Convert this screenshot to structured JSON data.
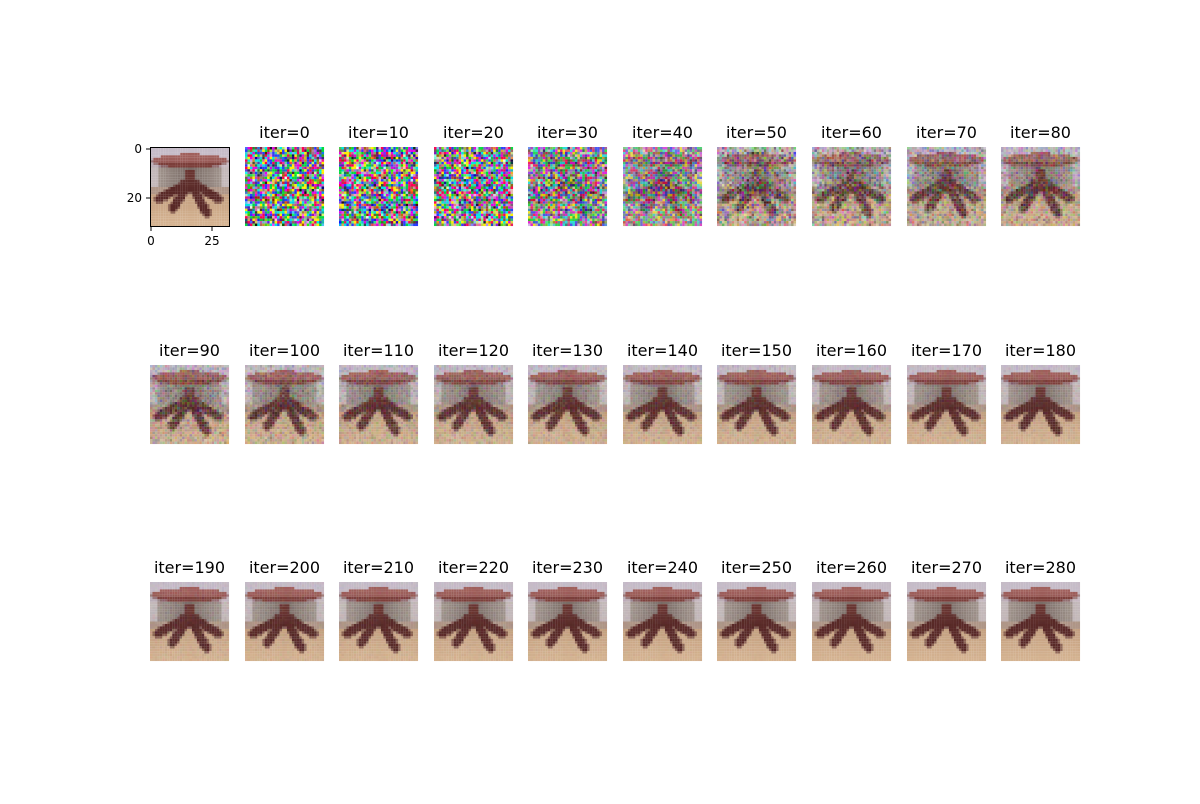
{
  "figure": {
    "original": {
      "y_ticks": [
        "0",
        "20"
      ],
      "x_ticks": [
        "0",
        "25"
      ]
    },
    "panels": [
      {
        "title": "iter=0",
        "noise": 1.0
      },
      {
        "title": "iter=10",
        "noise": 1.0
      },
      {
        "title": "iter=20",
        "noise": 0.97
      },
      {
        "title": "iter=30",
        "noise": 0.78
      },
      {
        "title": "iter=40",
        "noise": 0.58
      },
      {
        "title": "iter=50",
        "noise": 0.42
      },
      {
        "title": "iter=60",
        "noise": 0.34
      },
      {
        "title": "iter=70",
        "noise": 0.28
      },
      {
        "title": "iter=80",
        "noise": 0.24
      },
      {
        "title": "iter=90",
        "noise": 0.2
      },
      {
        "title": "iter=100",
        "noise": 0.17
      },
      {
        "title": "iter=110",
        "noise": 0.14
      },
      {
        "title": "iter=120",
        "noise": 0.12
      },
      {
        "title": "iter=130",
        "noise": 0.1
      },
      {
        "title": "iter=140",
        "noise": 0.09
      },
      {
        "title": "iter=150",
        "noise": 0.08
      },
      {
        "title": "iter=160",
        "noise": 0.07
      },
      {
        "title": "iter=170",
        "noise": 0.06
      },
      {
        "title": "iter=180",
        "noise": 0.05
      },
      {
        "title": "iter=190",
        "noise": 0.04
      },
      {
        "title": "iter=200",
        "noise": 0.035
      },
      {
        "title": "iter=210",
        "noise": 0.03
      },
      {
        "title": "iter=220",
        "noise": 0.025
      },
      {
        "title": "iter=230",
        "noise": 0.02
      },
      {
        "title": "iter=240",
        "noise": 0.018
      },
      {
        "title": "iter=250",
        "noise": 0.015
      },
      {
        "title": "iter=260",
        "noise": 0.012
      },
      {
        "title": "iter=270",
        "noise": 0.01
      },
      {
        "title": "iter=280",
        "noise": 0.01
      }
    ]
  }
}
